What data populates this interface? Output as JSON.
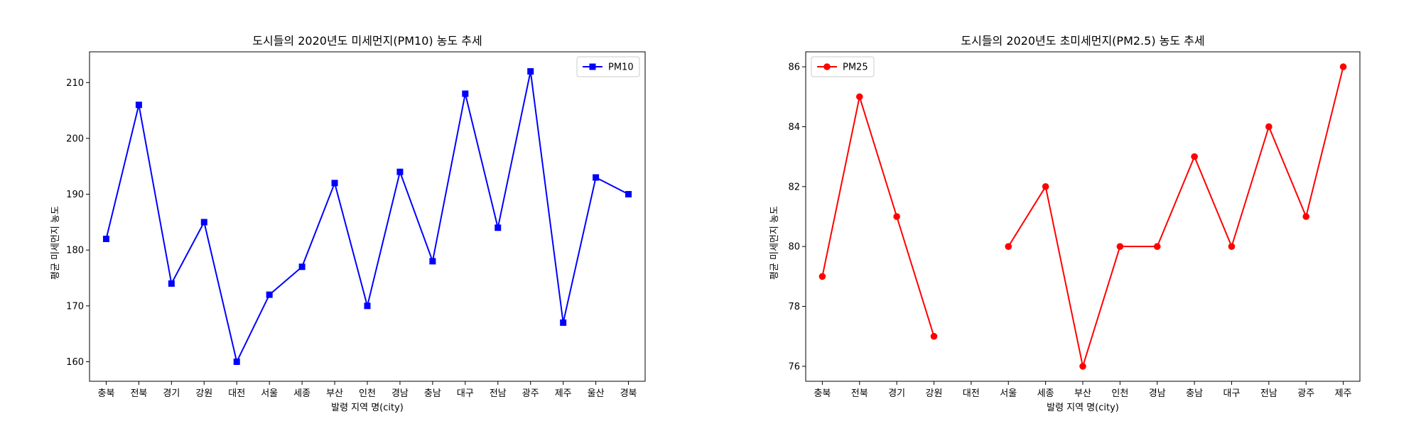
{
  "chart_data": [
    {
      "type": "line",
      "title": "도시들의 2020년도 미세먼지(PM10) 농도 추세",
      "xlabel": "발령 지역 명(city)",
      "ylabel": "평균 미세먼지 농도",
      "categories": [
        "충북",
        "전북",
        "경기",
        "강원",
        "대전",
        "서울",
        "세종",
        "부산",
        "인천",
        "경남",
        "충남",
        "대구",
        "전남",
        "광주",
        "제주",
        "울산",
        "경북"
      ],
      "series": [
        {
          "name": "PM10",
          "color": "#0000ff",
          "marker": "square",
          "values": [
            182,
            206,
            174,
            185,
            160,
            172,
            177,
            192,
            170,
            194,
            178,
            208,
            184,
            212,
            167,
            193,
            190
          ]
        }
      ],
      "ylim": [
        156.5,
        215.5
      ],
      "yticks": [
        160,
        170,
        180,
        190,
        200,
        210
      ],
      "legend": "top-right",
      "grid": false
    },
    {
      "type": "line",
      "title": "도시들의 2020년도 초미세먼지(PM2.5) 농도 추세",
      "xlabel": "발령 지역 명(city)",
      "ylabel": "평균 미세먼지 농도",
      "categories": [
        "충북",
        "전북",
        "경기",
        "강원",
        "대전",
        "서울",
        "세종",
        "부산",
        "인천",
        "경남",
        "충남",
        "대구",
        "전남",
        "광주",
        "제주"
      ],
      "series": [
        {
          "name": "PM25",
          "color": "#ff0000",
          "marker": "circle",
          "values": [
            79,
            85,
            81,
            77,
            null,
            80,
            82,
            76,
            80,
            80,
            83,
            80,
            84,
            81,
            86
          ]
        }
      ],
      "ylim": [
        75.5,
        86.5
      ],
      "yticks": [
        76,
        78,
        80,
        82,
        84,
        86
      ],
      "legend": "top-left",
      "grid": false
    }
  ]
}
